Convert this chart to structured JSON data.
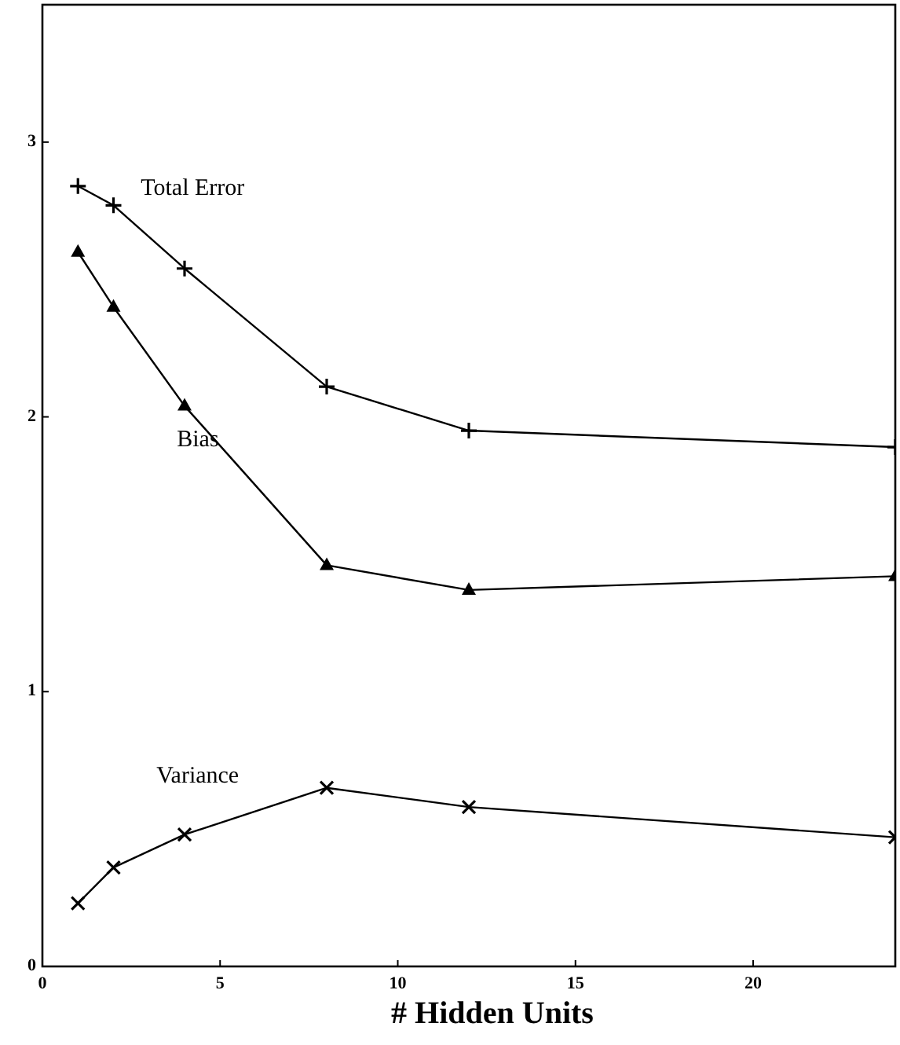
{
  "chart_data": {
    "type": "line",
    "xlabel": "# Hidden Units",
    "xlim": [
      0,
      24
    ],
    "xticks": [
      0,
      5,
      10,
      15,
      20
    ],
    "ylim": [
      0,
      3.5
    ],
    "yticks": [
      0,
      1,
      2,
      3
    ],
    "grid": false,
    "series": [
      {
        "name": "Total Error",
        "color": "#000000",
        "marker": "plus",
        "x": [
          1,
          2,
          4,
          8,
          12,
          24
        ],
        "values": [
          2.84,
          2.77,
          2.54,
          2.11,
          1.95,
          1.89
        ]
      },
      {
        "name": "Bias",
        "color": "#000000",
        "marker": "triangle",
        "x": [
          1,
          2,
          4,
          8,
          12,
          24
        ],
        "values": [
          2.6,
          2.4,
          2.04,
          1.46,
          1.37,
          1.42
        ]
      },
      {
        "name": "Variance",
        "color": "#000000",
        "marker": "x",
        "x": [
          1,
          2,
          4,
          8,
          12,
          24
        ],
        "values": [
          0.23,
          0.36,
          0.48,
          0.65,
          0.58,
          0.47
        ]
      }
    ]
  }
}
